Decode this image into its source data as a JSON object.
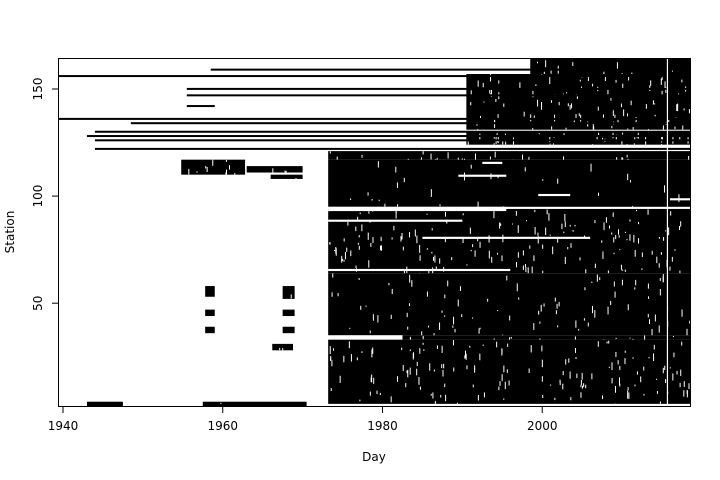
{
  "chart_data": {
    "type": "heatmap",
    "title": "",
    "xlabel": "Day",
    "ylabel": "Station",
    "xlim": [
      1939.5,
      2018.5
    ],
    "ylim": [
      2,
      164
    ],
    "x_ticks": [
      1940,
      1960,
      1980,
      2000
    ],
    "y_ticks": [
      50,
      100,
      150
    ],
    "grid": false,
    "legend": "none",
    "colors": {
      "observed": "#000000",
      "missing": "#ffffff",
      "frame": "#000000"
    },
    "description": "Presence matrix of daily observations per station (black = data present)",
    "blocks": [
      {
        "stations": [
          3,
          33
        ],
        "from": 1973.2,
        "to": 2018.5,
        "density": 0.88
      },
      {
        "stations": [
          33,
          35
        ],
        "from": 1982.5,
        "to": 2018.5,
        "density": 0.8
      },
      {
        "stations": [
          35,
          64
        ],
        "from": 1973.2,
        "to": 2018.5,
        "density": 0.93
      },
      {
        "stations": [
          64,
          94
        ],
        "from": 1973.2,
        "to": 2018.5,
        "density": 0.87
      },
      {
        "stations": [
          95,
          117
        ],
        "from": 1973.2,
        "to": 2018.5,
        "density": 0.97
      },
      {
        "stations": [
          110,
          117
        ],
        "from": 1954.8,
        "to": 1962.8,
        "density": 0.8
      },
      {
        "stations": [
          111,
          114
        ],
        "from": 1963.0,
        "to": 1970.0,
        "density": 0.85
      },
      {
        "stations": [
          108,
          110
        ],
        "from": 1966.0,
        "to": 1970.0,
        "density": 0.9
      },
      {
        "stations": [
          117,
          121
        ],
        "from": 1973.2,
        "to": 2018.5,
        "density": 0.85
      },
      {
        "stations": [
          124,
          130
        ],
        "from": 1990.5,
        "to": 2018.5,
        "density": 0.75
      },
      {
        "stations": [
          131,
          157
        ],
        "from": 1990.5,
        "to": 2018.5,
        "density": 0.85
      },
      {
        "stations": [
          157,
          164
        ],
        "from": 1998.5,
        "to": 2018.5,
        "density": 0.92
      },
      {
        "stations": [
          2,
          4
        ],
        "from": 1943.0,
        "to": 1947.5,
        "density": 0.95
      },
      {
        "stations": [
          2,
          4
        ],
        "from": 1957.5,
        "to": 1970.5,
        "density": 0.95
      },
      {
        "stations": [
          53,
          58
        ],
        "from": 1957.8,
        "to": 1959.0,
        "density": 1.0
      },
      {
        "stations": [
          44,
          47
        ],
        "from": 1957.8,
        "to": 1959.0,
        "density": 1.0
      },
      {
        "stations": [
          36,
          39
        ],
        "from": 1957.8,
        "to": 1959.0,
        "density": 1.0
      },
      {
        "stations": [
          52,
          58
        ],
        "from": 1967.5,
        "to": 1969.0,
        "density": 0.9
      },
      {
        "stations": [
          44,
          47
        ],
        "from": 1967.5,
        "to": 1969.0,
        "density": 0.9
      },
      {
        "stations": [
          36,
          39
        ],
        "from": 1967.5,
        "to": 1969.0,
        "density": 0.9
      },
      {
        "stations": [
          28,
          31
        ],
        "from": 1966.2,
        "to": 1968.8,
        "density": 0.7
      }
    ],
    "lines": [
      {
        "station": 156,
        "from": 1939.5,
        "to": 2018.5
      },
      {
        "station": 159,
        "from": 1958.5,
        "to": 2018.5
      },
      {
        "station": 150,
        "from": 1955.5,
        "to": 2018.5
      },
      {
        "station": 147,
        "from": 1955.5,
        "to": 2018.5
      },
      {
        "station": 142,
        "from": 1955.5,
        "to": 1959.0
      },
      {
        "station": 136,
        "from": 1939.5,
        "to": 2018.5
      },
      {
        "station": 134,
        "from": 1948.5,
        "to": 2018.5
      },
      {
        "station": 130,
        "from": 1944.0,
        "to": 2018.5
      },
      {
        "station": 128,
        "from": 1943.0,
        "to": 2018.5
      },
      {
        "station": 126,
        "from": 1944.0,
        "to": 2018.5
      },
      {
        "station": 122,
        "from": 1944.0,
        "to": 2018.5
      }
    ],
    "white_gaps": [
      {
        "stations": [
          93,
          95
        ],
        "from": 1973.2,
        "to": 1995.5
      },
      {
        "stations": [
          65,
          66
        ],
        "from": 1973.2,
        "to": 1996.0
      },
      {
        "stations": [
          33,
          35
        ],
        "from": 1973.2,
        "to": 1982.5
      },
      {
        "stations": [
          80,
          81
        ],
        "from": 1985.0,
        "to": 2006.0
      },
      {
        "stations": [
          88,
          89
        ],
        "from": 1973.2,
        "to": 1990.0
      },
      {
        "stations": [
          109,
          110
        ],
        "from": 1989.5,
        "to": 1995.5
      },
      {
        "stations": [
          115,
          116
        ],
        "from": 1992.5,
        "to": 1995.0
      },
      {
        "stations": [
          100,
          101
        ],
        "from": 1999.5,
        "to": 2003.5
      },
      {
        "stations": [
          98,
          99
        ],
        "from": 2016.0,
        "to": 2018.5
      }
    ],
    "vertical_gap_year": 2015.6
  }
}
